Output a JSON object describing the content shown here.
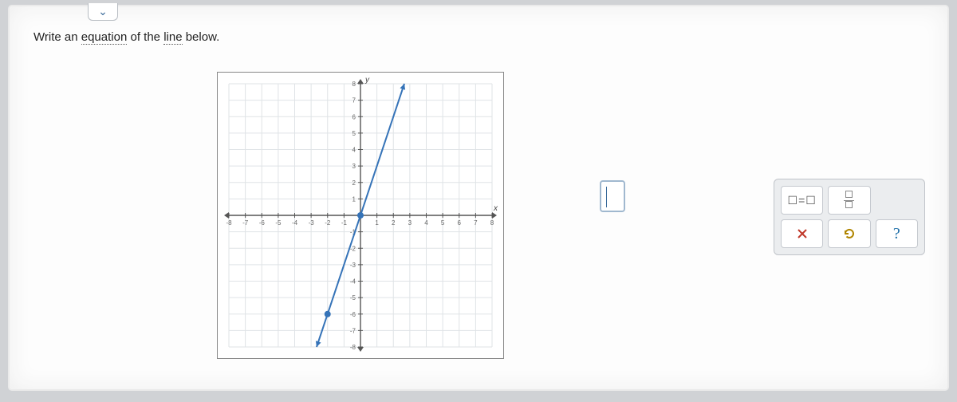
{
  "dropdown_icon": "⌄",
  "question": {
    "prefix": "Write an ",
    "word1": "equation",
    "mid": " of the ",
    "word2": "line",
    "suffix": " below."
  },
  "graph": {
    "type": "line",
    "xlim": [
      -8,
      8
    ],
    "ylim": [
      -8,
      8
    ],
    "xtick_step": 1,
    "ytick_step": 1,
    "xticks": [
      -8,
      -7,
      -6,
      -5,
      -4,
      -3,
      -2,
      -1,
      1,
      2,
      3,
      4,
      5,
      6,
      7,
      8
    ],
    "yticks": [
      -8,
      -7,
      -6,
      -5,
      -4,
      -3,
      -2,
      -1,
      1,
      2,
      3,
      4,
      5,
      6,
      7,
      8
    ],
    "xlabel": "x",
    "ylabel": "y",
    "label_fontsize": 10,
    "tick_fontsize": 8,
    "background_color": "#ffffff",
    "grid_color": "#dfe3e6",
    "axis_color": "#555555",
    "line_color": "#3573b8",
    "line_width": 2,
    "point_color": "#3573b8",
    "point_radius": 4,
    "points": [
      {
        "x": -2,
        "y": -6
      },
      {
        "x": 0,
        "y": 0
      }
    ],
    "slope": 3,
    "intercept": 0
  },
  "answer": {
    "value": ""
  },
  "toolbox": {
    "equation_label": "☐=☐",
    "clear_label": "×",
    "reset_label": "↺",
    "help_label": "?"
  }
}
